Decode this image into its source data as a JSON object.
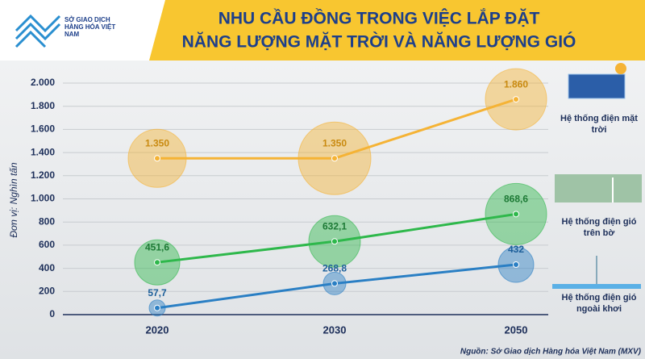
{
  "header": {
    "logo": "SỞ GIAO DỊCH HÀNG HÓA VIỆT NAM",
    "title_line1": "NHU CẦU ĐỒNG TRONG VIỆC LẮP ĐẶT",
    "title_line2": "NĂNG LƯỢNG MẶT TRỜI VÀ NĂNG LƯỢNG GIÓ"
  },
  "chart_data": {
    "type": "line",
    "y_label": "Đơn vị: Nghìn tấn",
    "categories": [
      "2020",
      "2030",
      "2050"
    ],
    "series": [
      {
        "name": "Hệ thống điện mặt trời",
        "color": "#f5b335",
        "values": [
          1350,
          1350,
          1860
        ],
        "value_labels": [
          "1.350",
          "1.350",
          "1.860"
        ]
      },
      {
        "name": "Hệ thống điện gió trên bờ",
        "color": "#2eb84b",
        "values": [
          451.6,
          632.1,
          868.6
        ],
        "value_labels": [
          "451,6",
          "632,1",
          "868,6"
        ]
      },
      {
        "name": "Hệ thống điện gió ngoài khơi",
        "color": "#2a7fc4",
        "values": [
          57.7,
          268.8,
          432
        ],
        "value_labels": [
          "57,7",
          "268,8",
          "432"
        ]
      }
    ],
    "ylim": [
      0,
      2000
    ],
    "yticks": [
      0,
      200,
      400,
      600,
      800,
      {
        "value": 1000,
        "label": "1.000"
      },
      {
        "value": 1200,
        "label": "1.200"
      },
      {
        "value": 1400,
        "label": "1.400"
      },
      {
        "value": 1600,
        "label": "1.600"
      },
      {
        "value": 1800,
        "label": "1.800"
      },
      {
        "value": 2000,
        "label": "2.000"
      }
    ],
    "grid": true,
    "source": "Nguồn: Sở Giao dịch Hàng hóa Việt Nam (MXV)"
  }
}
